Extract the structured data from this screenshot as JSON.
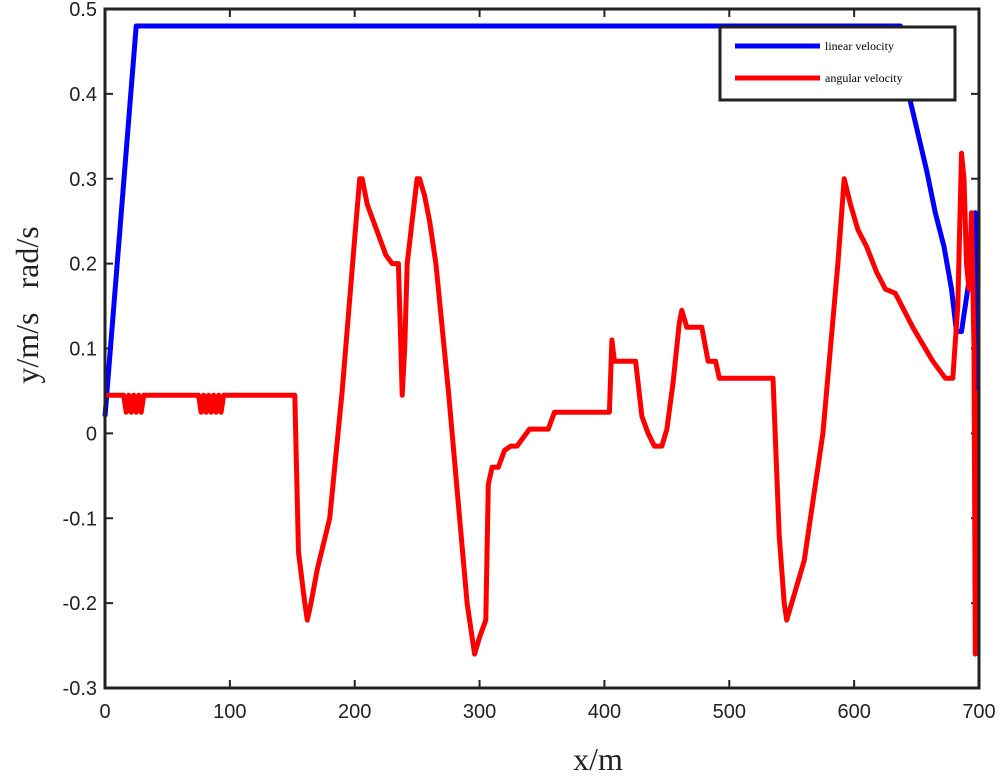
{
  "chart_data": {
    "type": "line",
    "xlabel": "x/m",
    "ylabel": "y/m/s   rad/s",
    "xlim": [
      0,
      700
    ],
    "xticks": [
      0,
      100,
      200,
      300,
      400,
      500,
      600,
      700
    ],
    "ylim": [
      -0.3,
      0.5
    ],
    "yticks": [
      -0.3,
      -0.2,
      -0.1,
      0,
      0.1,
      0.2,
      0.3,
      0.4,
      0.5
    ],
    "grid": false,
    "legend": "upper right",
    "series": [
      {
        "name": "linear velocity",
        "color": "#0000ff",
        "x": [
          0,
          25,
          637,
          642,
          650,
          658,
          665,
          672,
          678,
          682,
          686,
          690,
          694,
          697,
          699
        ],
        "values": [
          0.02,
          0.48,
          0.48,
          0.41,
          0.36,
          0.31,
          0.26,
          0.22,
          0.17,
          0.12,
          0.12,
          0.16,
          0.2,
          0.26,
          0.05
        ]
      },
      {
        "name": "angular velocity",
        "color": "#ff0000",
        "x": [
          0,
          15,
          17,
          19,
          21,
          23,
          25,
          27,
          29,
          31,
          75,
          77,
          79,
          81,
          83,
          85,
          87,
          89,
          91,
          93,
          95,
          152,
          155,
          160,
          162,
          165,
          170,
          180,
          190,
          200,
          204,
          206,
          210,
          215,
          220,
          225,
          230,
          235,
          237,
          238,
          240,
          242,
          246,
          250,
          252,
          256,
          260,
          265,
          275,
          290,
          296,
          300,
          305,
          307,
          310,
          315,
          320,
          325,
          330,
          340,
          355,
          360,
          375,
          404,
          406,
          408,
          410,
          425,
          430,
          435,
          440,
          446,
          450,
          455,
          460,
          462,
          466,
          478,
          483,
          489,
          492,
          532,
          535,
          540,
          544,
          546,
          550,
          560,
          575,
          587,
          592,
          597,
          603,
          610,
          618,
          625,
          633,
          640,
          647,
          655,
          663,
          673,
          679,
          683,
          686,
          688,
          690,
          692,
          694,
          696,
          697,
          698
        ],
        "values": [
          0.045,
          0.045,
          0.025,
          0.045,
          0.025,
          0.045,
          0.025,
          0.045,
          0.025,
          0.045,
          0.045,
          0.025,
          0.045,
          0.025,
          0.045,
          0.025,
          0.045,
          0.025,
          0.045,
          0.025,
          0.045,
          0.045,
          -0.14,
          -0.2,
          -0.22,
          -0.2,
          -0.16,
          -0.1,
          0.05,
          0.23,
          0.3,
          0.3,
          0.27,
          0.25,
          0.23,
          0.21,
          0.2,
          0.2,
          0.1,
          0.045,
          0.1,
          0.2,
          0.25,
          0.3,
          0.3,
          0.28,
          0.25,
          0.2,
          0.05,
          -0.2,
          -0.26,
          -0.24,
          -0.22,
          -0.06,
          -0.04,
          -0.04,
          -0.02,
          -0.015,
          -0.015,
          0.005,
          0.005,
          0.025,
          0.025,
          0.025,
          0.11,
          0.085,
          0.085,
          0.085,
          0.02,
          0.0,
          -0.015,
          -0.015,
          0.005,
          0.06,
          0.13,
          0.145,
          0.125,
          0.125,
          0.085,
          0.085,
          0.065,
          0.065,
          0.065,
          -0.12,
          -0.2,
          -0.22,
          -0.2,
          -0.15,
          0.0,
          0.2,
          0.3,
          0.27,
          0.24,
          0.22,
          0.19,
          0.17,
          0.165,
          0.145,
          0.125,
          0.105,
          0.085,
          0.065,
          0.065,
          0.15,
          0.33,
          0.3,
          0.2,
          0.17,
          0.26,
          0.1,
          -0.26,
          0.05
        ]
      }
    ]
  }
}
